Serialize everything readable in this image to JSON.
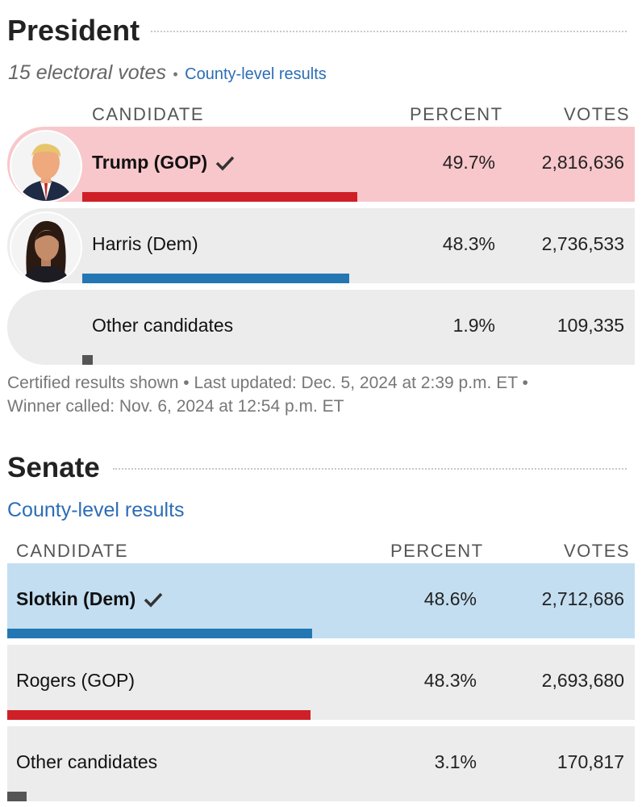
{
  "president": {
    "title": "President",
    "electoral": "15 electoral votes",
    "separator": "•",
    "county_link": "County-level results",
    "headers": {
      "candidate": "CANDIDATE",
      "percent": "PERCENT",
      "votes": "VOTES"
    },
    "rows": [
      {
        "name": "Trump (GOP)",
        "percent": "49.7%",
        "votes": "2,816,636",
        "winner": true,
        "party_color": "#cf2027",
        "share": 0.497
      },
      {
        "name": "Harris (Dem)",
        "percent": "48.3%",
        "votes": "2,736,533",
        "winner": false,
        "party_color": "#2477b3",
        "share": 0.483
      },
      {
        "name": "Other candidates",
        "percent": "1.9%",
        "votes": "109,335",
        "winner": false,
        "party_color": "#555555",
        "share": 0.019
      }
    ],
    "footer_line1": "Certified results shown • Last updated: Dec. 5, 2024 at 2:39 p.m. ET •",
    "footer_line2": "Winner called: Nov. 6, 2024 at 12:54 p.m. ET"
  },
  "senate": {
    "title": "Senate",
    "county_link": "County-level results",
    "headers": {
      "candidate": "CANDIDATE",
      "percent": "PERCENT",
      "votes": "VOTES"
    },
    "rows": [
      {
        "name": "Slotkin (Dem)",
        "percent": "48.6%",
        "votes": "2,712,686",
        "winner": true,
        "party_color": "#2477b3",
        "share": 0.486
      },
      {
        "name": "Rogers (GOP)",
        "percent": "48.3%",
        "votes": "2,693,680",
        "winner": false,
        "party_color": "#cf2027",
        "share": 0.483
      },
      {
        "name": "Other candidates",
        "percent": "3.1%",
        "votes": "170,817",
        "winner": false,
        "party_color": "#555555",
        "share": 0.031
      }
    ]
  },
  "colors": {
    "gop_win_bg": "#f8c7cb",
    "dem_win_bg": "#c3def1",
    "row_bg": "#ececec",
    "link": "#2d6db5"
  },
  "icons": {
    "winner": "checkmark-icon"
  }
}
